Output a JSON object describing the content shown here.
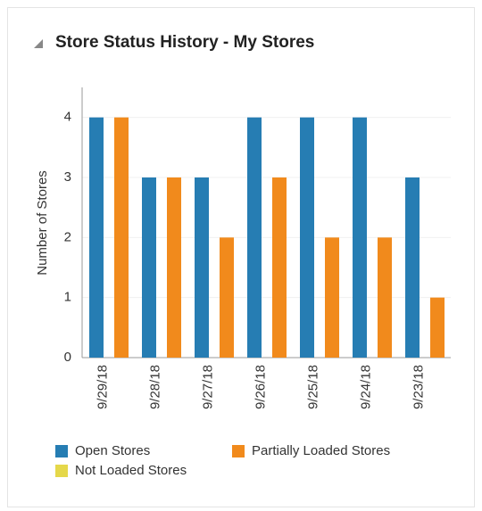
{
  "chart_data": {
    "type": "bar",
    "title": "Store Status History - My Stores",
    "y_label": "Number of Stores",
    "categories": [
      "9/29/18",
      "9/28/18",
      "9/27/18",
      "9/26/18",
      "9/25/18",
      "9/24/18",
      "9/23/18"
    ],
    "series": [
      {
        "name": "Open Stores",
        "color": "#267db3",
        "values": [
          4,
          3,
          3,
          4,
          4,
          4,
          3
        ]
      },
      {
        "name": "Partially Loaded Stores",
        "color": "#f18a1c",
        "values": [
          4,
          3,
          2,
          3,
          2,
          2,
          1
        ]
      },
      {
        "name": "Not Loaded Stores",
        "color": "#e5d84a",
        "values": [
          0,
          0,
          0,
          0,
          0,
          0,
          0
        ]
      }
    ],
    "ylim": [
      0,
      4.5
    ],
    "yticks": [
      0,
      1,
      2,
      3,
      4
    ],
    "grid": true,
    "legend": "bottom"
  }
}
